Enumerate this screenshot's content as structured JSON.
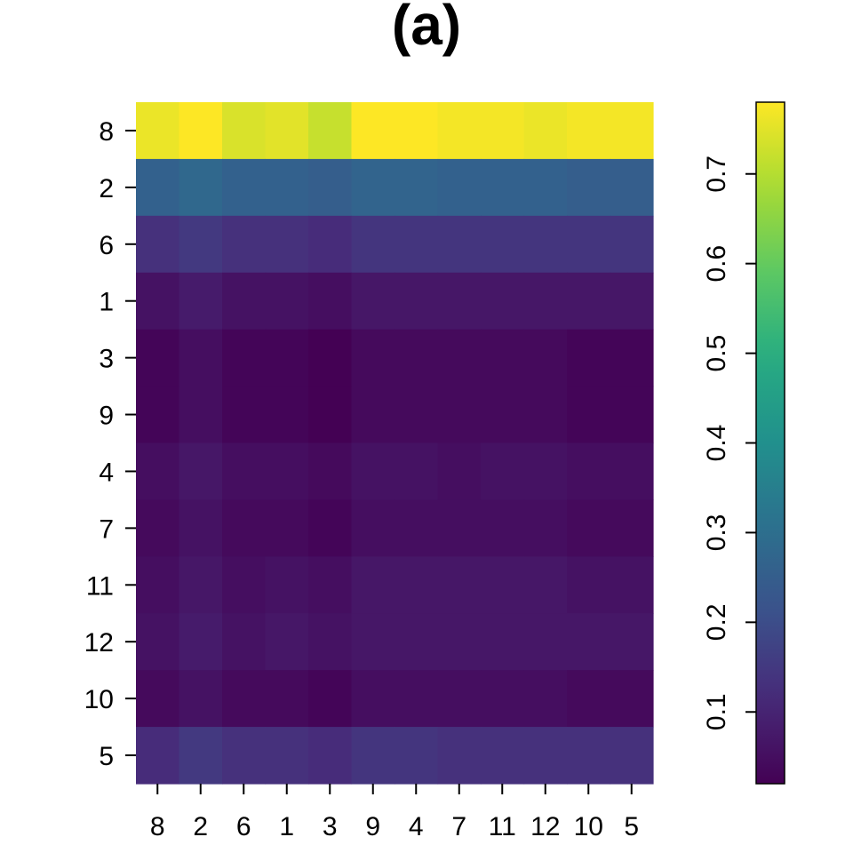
{
  "chart_data": {
    "type": "heatmap",
    "title": "(a)",
    "x_categories": [
      "8",
      "2",
      "6",
      "1",
      "3",
      "9",
      "4",
      "7",
      "11",
      "12",
      "10",
      "5"
    ],
    "y_categories": [
      "8",
      "2",
      "6",
      "1",
      "3",
      "9",
      "4",
      "7",
      "11",
      "12",
      "10",
      "5"
    ],
    "values": [
      [
        0.76,
        0.78,
        0.74,
        0.75,
        0.72,
        0.78,
        0.78,
        0.77,
        0.77,
        0.76,
        0.77,
        0.77
      ],
      [
        0.26,
        0.28,
        0.26,
        0.26,
        0.25,
        0.27,
        0.27,
        0.26,
        0.26,
        0.26,
        0.25,
        0.25
      ],
      [
        0.13,
        0.15,
        0.13,
        0.13,
        0.12,
        0.14,
        0.14,
        0.14,
        0.14,
        0.14,
        0.14,
        0.14
      ],
      [
        0.06,
        0.08,
        0.06,
        0.06,
        0.05,
        0.07,
        0.07,
        0.07,
        0.07,
        0.07,
        0.07,
        0.07
      ],
      [
        0.03,
        0.05,
        0.03,
        0.03,
        0.02,
        0.04,
        0.04,
        0.04,
        0.04,
        0.04,
        0.03,
        0.03
      ],
      [
        0.03,
        0.05,
        0.03,
        0.03,
        0.02,
        0.04,
        0.04,
        0.04,
        0.04,
        0.04,
        0.03,
        0.03
      ],
      [
        0.05,
        0.07,
        0.05,
        0.05,
        0.04,
        0.06,
        0.06,
        0.05,
        0.06,
        0.06,
        0.05,
        0.05
      ],
      [
        0.04,
        0.06,
        0.04,
        0.04,
        0.03,
        0.05,
        0.05,
        0.05,
        0.05,
        0.05,
        0.04,
        0.04
      ],
      [
        0.05,
        0.07,
        0.05,
        0.06,
        0.05,
        0.07,
        0.07,
        0.07,
        0.07,
        0.07,
        0.06,
        0.06
      ],
      [
        0.06,
        0.08,
        0.06,
        0.07,
        0.06,
        0.07,
        0.07,
        0.07,
        0.07,
        0.07,
        0.07,
        0.07
      ],
      [
        0.04,
        0.06,
        0.04,
        0.04,
        0.03,
        0.05,
        0.05,
        0.05,
        0.05,
        0.05,
        0.04,
        0.04
      ],
      [
        0.12,
        0.15,
        0.13,
        0.13,
        0.12,
        0.14,
        0.14,
        0.13,
        0.13,
        0.13,
        0.13,
        0.13
      ]
    ],
    "colorbar": {
      "palette": "viridis",
      "range": [
        0.02,
        0.78
      ],
      "ticks": [
        0.1,
        0.2,
        0.3,
        0.4,
        0.5,
        0.6,
        0.7
      ],
      "tick_labels": [
        "0.1",
        "0.2",
        "0.3",
        "0.4",
        "0.5",
        "0.6",
        "0.7"
      ]
    },
    "xlabel": "",
    "ylabel": "",
    "grid": false
  }
}
